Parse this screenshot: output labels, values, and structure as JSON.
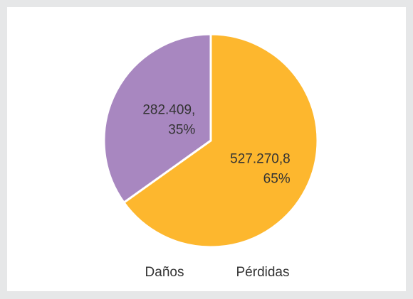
{
  "chart_data": {
    "type": "pie",
    "categories": [
      "Daños",
      "Pérdidas"
    ],
    "values": [
      282409,
      527270.8
    ],
    "value_labels": [
      "282.409,",
      "527.270,8"
    ],
    "percents": [
      35,
      65
    ],
    "percent_labels": [
      "35%",
      "65%"
    ],
    "colors": [
      "#a887c0",
      "#fdb72e"
    ],
    "legend": "bottom"
  }
}
